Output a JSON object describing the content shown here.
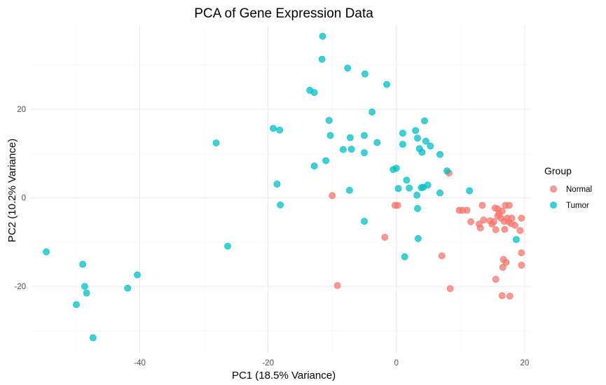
{
  "chart_data": {
    "type": "scatter",
    "title": "PCA of Gene Expression Data",
    "xlabel": "PC1 (18.5% Variance)",
    "ylabel": "PC2 (10.2% Variance)",
    "xlim": [
      -57,
      21
    ],
    "ylim": [
      -35,
      39
    ],
    "x_ticks": [
      -40,
      -20,
      0,
      20
    ],
    "y_ticks": [
      -20,
      0,
      20
    ],
    "x_tick_labels": [
      "-40",
      "-20",
      "0",
      "20"
    ],
    "y_tick_labels": [
      "-20",
      "0",
      "20"
    ],
    "grid": true,
    "legend": {
      "title": "Group",
      "position": "right"
    },
    "series": [
      {
        "name": "Normal",
        "color": "#F8766D",
        "points": [
          [
            8.2,
            5.6
          ],
          [
            -10,
            0.5
          ],
          [
            -0.2,
            -1.7
          ],
          [
            0.2,
            -1.7
          ],
          [
            9.8,
            -2.8
          ],
          [
            10.3,
            -2.8
          ],
          [
            11.0,
            -2.8
          ],
          [
            13.4,
            -1.7
          ],
          [
            15.4,
            -2.3
          ],
          [
            15.8,
            -2.5
          ],
          [
            16.5,
            -3.0
          ],
          [
            17.0,
            -1.7
          ],
          [
            17.6,
            -1.7
          ],
          [
            16.0,
            -3.6
          ],
          [
            15.8,
            -4.1
          ],
          [
            16.3,
            -4.6
          ],
          [
            17.3,
            -4.6
          ],
          [
            18.0,
            -4.6
          ],
          [
            19.5,
            -4.6
          ],
          [
            11.6,
            -5.4
          ],
          [
            12.9,
            -5.9
          ],
          [
            13.6,
            -5.0
          ],
          [
            14.6,
            -5.2
          ],
          [
            15.2,
            -5.4
          ],
          [
            14.9,
            -5.9
          ],
          [
            16.8,
            -5.3
          ],
          [
            17.5,
            -5.4
          ],
          [
            17.9,
            -5.8
          ],
          [
            18.5,
            -6.2
          ],
          [
            13.1,
            -6.8
          ],
          [
            15.5,
            -7.2
          ],
          [
            16.9,
            -7.1
          ],
          [
            19.3,
            -7.4
          ],
          [
            -1.8,
            -8.9
          ],
          [
            7.1,
            -13.1
          ],
          [
            19.5,
            -12.4
          ],
          [
            16.7,
            -13.9
          ],
          [
            17.1,
            -14.6
          ],
          [
            19.5,
            -15.2
          ],
          [
            16.6,
            -15.7
          ],
          [
            15.5,
            -18.4
          ],
          [
            -9.2,
            -19.8
          ],
          [
            8.4,
            -20.5
          ],
          [
            16.5,
            -22.1
          ],
          [
            17.7,
            -22.2
          ]
        ]
      },
      {
        "name": "Tumor",
        "color": "#00BFC4",
        "points": [
          [
            -11.5,
            36.5
          ],
          [
            -11.6,
            31.3
          ],
          [
            -7.6,
            29.3
          ],
          [
            -4.9,
            28.0
          ],
          [
            -1.5,
            25.6
          ],
          [
            -13.5,
            24.3
          ],
          [
            -12.8,
            23.8
          ],
          [
            -3.8,
            19.4
          ],
          [
            -19.2,
            15.7
          ],
          [
            -18.2,
            15.3
          ],
          [
            -10.5,
            17.5
          ],
          [
            4.4,
            17.4
          ],
          [
            -10.3,
            14.1
          ],
          [
            -7.2,
            13.6
          ],
          [
            -5.0,
            14.1
          ],
          [
            1.0,
            14.6
          ],
          [
            3.0,
            15.2
          ],
          [
            3.3,
            13.5
          ],
          [
            4.6,
            12.8
          ],
          [
            5.3,
            11.7
          ],
          [
            1.0,
            12.1
          ],
          [
            -3.0,
            12.5
          ],
          [
            -28.1,
            12.4
          ],
          [
            -8.3,
            10.9
          ],
          [
            -7.0,
            11.0
          ],
          [
            3.6,
            11.1
          ],
          [
            4.0,
            10.3
          ],
          [
            -5.0,
            10.2
          ],
          [
            6.8,
            9.8
          ],
          [
            -11.0,
            8.4
          ],
          [
            -12.8,
            7.2
          ],
          [
            -0.5,
            6.4
          ],
          [
            0.0,
            6.7
          ],
          [
            7.9,
            6.1
          ],
          [
            1.6,
            4.0
          ],
          [
            -18.6,
            3.1
          ],
          [
            0.3,
            2.1
          ],
          [
            2.0,
            2.2
          ],
          [
            3.9,
            2.3
          ],
          [
            4.2,
            2.4
          ],
          [
            4.9,
            2.9
          ],
          [
            -7.3,
            1.7
          ],
          [
            6.8,
            1.1
          ],
          [
            11.4,
            1.6
          ],
          [
            3.2,
            0.6
          ],
          [
            -18.1,
            -1.6
          ],
          [
            3.3,
            -2.4
          ],
          [
            -5.0,
            -5.3
          ],
          [
            3.4,
            -9.2
          ],
          [
            18.7,
            -9.4
          ],
          [
            -26.3,
            -10.9
          ],
          [
            1.3,
            -13.3
          ],
          [
            -54.6,
            -12.2
          ],
          [
            -48.9,
            -15.0
          ],
          [
            -48.6,
            -20.0
          ],
          [
            -48.3,
            -21.5
          ],
          [
            -41.9,
            -20.4
          ],
          [
            -40.4,
            -17.4
          ],
          [
            -49.9,
            -24.1
          ],
          [
            -47.3,
            -31.6
          ]
        ]
      }
    ]
  }
}
